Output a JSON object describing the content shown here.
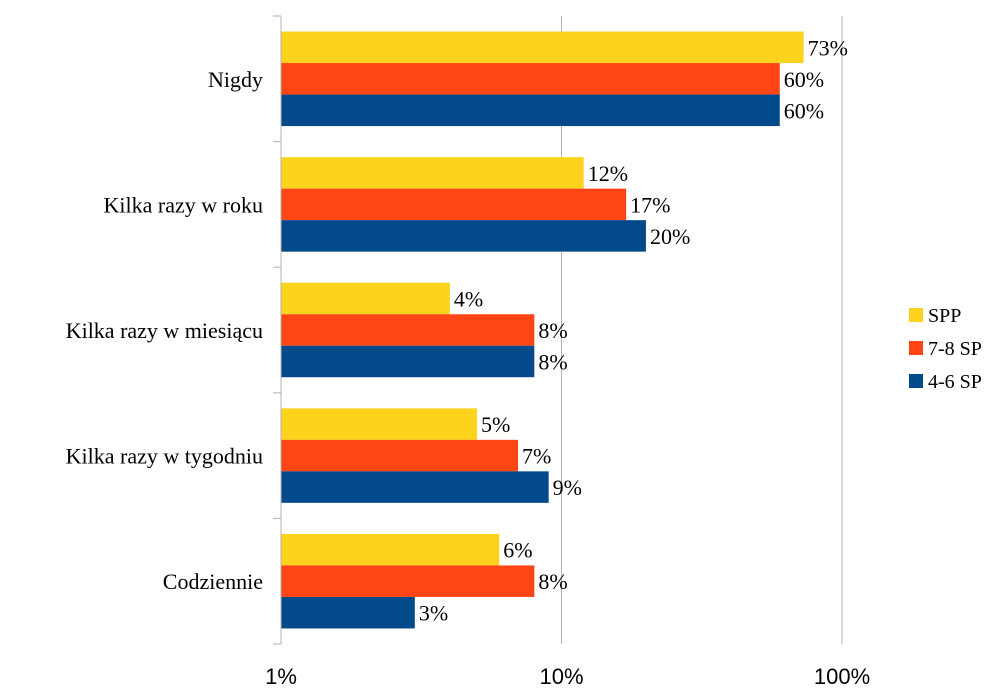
{
  "chart_data": {
    "type": "bar",
    "orientation": "horizontal",
    "x_scale": "log",
    "xlim": [
      "1%",
      "100%"
    ],
    "x_ticks": [
      "1%",
      "10%",
      "100%"
    ],
    "grid": true,
    "legend_position": "right",
    "categories": [
      "Nigdy",
      "Kilka razy w roku",
      "Kilka razy w miesiącu",
      "Kilka razy w tygodniu",
      "Codziennie"
    ],
    "series": [
      {
        "name": "SPP",
        "color": "#FDD31D",
        "values": [
          73,
          12,
          4,
          5,
          6
        ],
        "labels": [
          "73%",
          "12%",
          "4%",
          "5%",
          "6%"
        ]
      },
      {
        "name": "7-8 SP",
        "color": "#FF4514",
        "values": [
          60,
          17,
          8,
          7,
          8
        ],
        "labels": [
          "60%",
          "17%",
          "8%",
          "7%",
          "8%"
        ]
      },
      {
        "name": "4-6 SP",
        "color": "#034A8B",
        "values": [
          60,
          20,
          8,
          9,
          3
        ],
        "labels": [
          "60%",
          "20%",
          "8%",
          "9%",
          "3%"
        ]
      }
    ]
  }
}
